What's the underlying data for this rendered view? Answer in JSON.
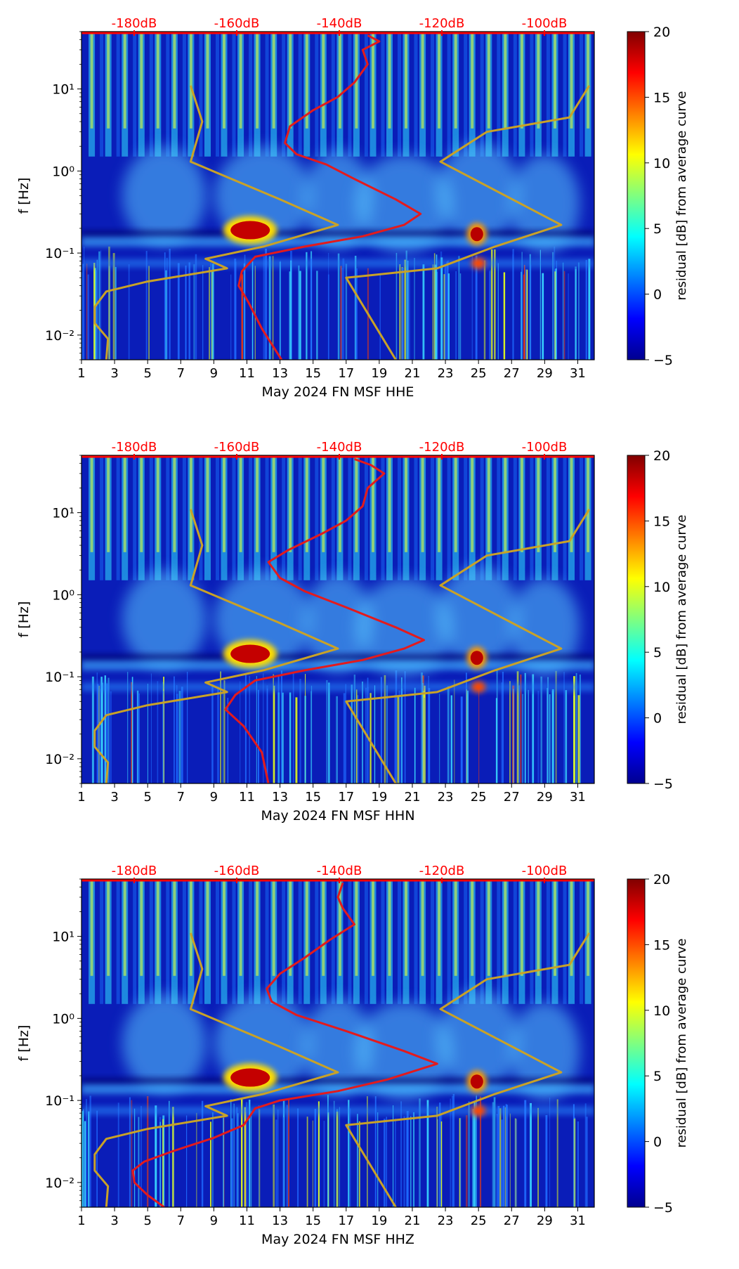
{
  "chart_data": [
    {
      "type": "heatmap",
      "component": "HHE",
      "xlabel": "May 2024 FN MSF  HHE",
      "ylabel": "f [Hz]",
      "colorbar_label": "residual [dB] from average curve",
      "xlim": [
        1,
        32
      ],
      "xticks": [
        1,
        3,
        5,
        7,
        9,
        11,
        13,
        15,
        17,
        19,
        21,
        23,
        25,
        27,
        29,
        31
      ],
      "ylim_hz": [
        0.005,
        50
      ],
      "yticks": [
        "10⁻²",
        "10⁻¹",
        "10⁰",
        "10¹"
      ],
      "colorbar_range": [
        -5,
        20
      ],
      "colorbar_ticks": [
        "−5",
        "0",
        "5",
        "10",
        "15",
        "20"
      ],
      "top_axis_ticks": [
        "-180dB",
        "-160dB",
        "-140dB",
        "-120dB",
        "-100dB"
      ],
      "top_axis_label_color": "#ff0000",
      "series": [
        {
          "name": "red curve (average PSD, top dB axis)",
          "color": "#e41a1c",
          "points": [
            [
              13.1,
              0.005
            ],
            [
              11.9,
              0.012
            ],
            [
              11.1,
              0.025
            ],
            [
              10.5,
              0.04
            ],
            [
              10.7,
              0.06
            ],
            [
              11.5,
              0.09
            ],
            [
              14.5,
              0.12
            ],
            [
              18.0,
              0.16
            ],
            [
              20.5,
              0.22
            ],
            [
              21.5,
              0.3
            ],
            [
              20.0,
              0.45
            ],
            [
              17.5,
              0.8
            ],
            [
              15.8,
              1.2
            ],
            [
              14.0,
              1.6
            ],
            [
              13.3,
              2.2
            ],
            [
              13.6,
              3.5
            ],
            [
              15.0,
              5.5
            ],
            [
              16.5,
              8.0
            ],
            [
              17.5,
              12.0
            ],
            [
              18.3,
              20.0
            ],
            [
              18.0,
              30.0
            ],
            [
              19.0,
              38.0
            ],
            [
              18.3,
              45.0
            ]
          ]
        },
        {
          "name": "gold curve (reference model)",
          "color": "#c9a227",
          "points": [
            [
              2.5,
              0.005
            ],
            [
              2.6,
              0.009
            ],
            [
              1.8,
              0.014
            ],
            [
              1.8,
              0.022
            ],
            [
              2.5,
              0.034
            ],
            [
              5.0,
              0.045
            ],
            [
              9.8,
              0.065
            ],
            [
              8.5,
              0.085
            ],
            [
              12.0,
              0.12
            ],
            [
              16.5,
              0.22
            ],
            [
              13.0,
              0.45
            ],
            [
              7.6,
              1.3
            ],
            [
              8.3,
              4.0
            ],
            [
              7.6,
              11.0
            ],
            [
              null,
              null
            ],
            [
              20.0,
              0.005
            ],
            [
              17.0,
              0.05
            ],
            [
              22.5,
              0.065
            ],
            [
              26.0,
              0.12
            ],
            [
              30.0,
              0.22
            ],
            [
              22.7,
              1.3
            ],
            [
              25.5,
              3.0
            ],
            [
              30.5,
              4.5
            ],
            [
              31.7,
              11.0
            ]
          ]
        }
      ]
    },
    {
      "type": "heatmap",
      "component": "HHN",
      "xlabel": "May 2024 FN MSF  HHN",
      "ylabel": "f [Hz]",
      "colorbar_label": "residual [dB] from average curve",
      "xlim": [
        1,
        32
      ],
      "xticks": [
        1,
        3,
        5,
        7,
        9,
        11,
        13,
        15,
        17,
        19,
        21,
        23,
        25,
        27,
        29,
        31
      ],
      "ylim_hz": [
        0.005,
        50
      ],
      "yticks": [
        "10⁻²",
        "10⁻¹",
        "10⁰",
        "10¹"
      ],
      "colorbar_range": [
        -5,
        20
      ],
      "colorbar_ticks": [
        "−5",
        "0",
        "5",
        "10",
        "15",
        "20"
      ],
      "top_axis_ticks": [
        "-180dB",
        "-160dB",
        "-140dB",
        "-120dB",
        "-100dB"
      ],
      "top_axis_label_color": "#ff0000",
      "series": [
        {
          "name": "red curve (average PSD, top dB axis)",
          "color": "#e41a1c",
          "points": [
            [
              12.3,
              0.005
            ],
            [
              11.9,
              0.012
            ],
            [
              10.8,
              0.025
            ],
            [
              9.7,
              0.04
            ],
            [
              10.3,
              0.06
            ],
            [
              11.5,
              0.09
            ],
            [
              14.5,
              0.12
            ],
            [
              18.0,
              0.16
            ],
            [
              20.5,
              0.22
            ],
            [
              21.7,
              0.28
            ],
            [
              20.0,
              0.4
            ],
            [
              17.0,
              0.7
            ],
            [
              14.5,
              1.1
            ],
            [
              13.0,
              1.6
            ],
            [
              12.3,
              2.5
            ],
            [
              13.5,
              3.5
            ],
            [
              15.5,
              5.5
            ],
            [
              17.0,
              8.0
            ],
            [
              18.0,
              12.0
            ],
            [
              18.3,
              20.0
            ],
            [
              19.3,
              30.0
            ],
            [
              18.5,
              38.0
            ],
            [
              17.5,
              45.0
            ]
          ]
        },
        {
          "name": "gold curve (reference model)",
          "color": "#c9a227",
          "points": [
            [
              2.5,
              0.005
            ],
            [
              2.6,
              0.009
            ],
            [
              1.8,
              0.014
            ],
            [
              1.8,
              0.022
            ],
            [
              2.5,
              0.034
            ],
            [
              5.0,
              0.045
            ],
            [
              9.8,
              0.065
            ],
            [
              8.5,
              0.085
            ],
            [
              12.0,
              0.12
            ],
            [
              16.5,
              0.22
            ],
            [
              13.0,
              0.45
            ],
            [
              7.6,
              1.3
            ],
            [
              8.3,
              4.0
            ],
            [
              7.6,
              11.0
            ],
            [
              null,
              null
            ],
            [
              20.0,
              0.005
            ],
            [
              17.0,
              0.05
            ],
            [
              22.5,
              0.065
            ],
            [
              26.0,
              0.12
            ],
            [
              30.0,
              0.22
            ],
            [
              22.7,
              1.3
            ],
            [
              25.5,
              3.0
            ],
            [
              30.5,
              4.5
            ],
            [
              31.7,
              11.0
            ]
          ]
        }
      ]
    },
    {
      "type": "heatmap",
      "component": "HHZ",
      "xlabel": "May 2024 FN MSF  HHZ",
      "ylabel": "f [Hz]",
      "colorbar_label": "residual [dB] from average curve",
      "xlim": [
        1,
        32
      ],
      "xticks": [
        1,
        3,
        5,
        7,
        9,
        11,
        13,
        15,
        17,
        19,
        21,
        23,
        25,
        27,
        29,
        31
      ],
      "ylim_hz": [
        0.005,
        50
      ],
      "yticks": [
        "10⁻²",
        "10⁻¹",
        "10⁰",
        "10¹"
      ],
      "colorbar_range": [
        -5,
        20
      ],
      "colorbar_ticks": [
        "−5",
        "0",
        "5",
        "10",
        "15",
        "20"
      ],
      "top_axis_ticks": [
        "-180dB",
        "-160dB",
        "-140dB",
        "-120dB",
        "-100dB"
      ],
      "top_axis_label_color": "#ff0000",
      "series": [
        {
          "name": "red curve (average PSD, top dB axis)",
          "color": "#e41a1c",
          "points": [
            [
              6.0,
              0.005
            ],
            [
              5.0,
              0.007
            ],
            [
              4.2,
              0.01
            ],
            [
              4.1,
              0.014
            ],
            [
              4.8,
              0.018
            ],
            [
              6.5,
              0.024
            ],
            [
              9.0,
              0.035
            ],
            [
              10.8,
              0.05
            ],
            [
              11.5,
              0.08
            ],
            [
              13.0,
              0.1
            ],
            [
              16.5,
              0.13
            ],
            [
              19.5,
              0.18
            ],
            [
              22.5,
              0.28
            ],
            [
              20.5,
              0.4
            ],
            [
              17.0,
              0.7
            ],
            [
              14.0,
              1.1
            ],
            [
              12.5,
              1.6
            ],
            [
              12.2,
              2.3
            ],
            [
              13.0,
              3.5
            ],
            [
              14.5,
              5.5
            ],
            [
              16.0,
              9.0
            ],
            [
              17.5,
              14.0
            ],
            [
              16.8,
              22.0
            ],
            [
              16.5,
              30.0
            ],
            [
              16.8,
              45.0
            ]
          ]
        },
        {
          "name": "gold curve (reference model)",
          "color": "#c9a227",
          "points": [
            [
              2.5,
              0.005
            ],
            [
              2.6,
              0.009
            ],
            [
              1.8,
              0.014
            ],
            [
              1.8,
              0.022
            ],
            [
              2.5,
              0.034
            ],
            [
              5.0,
              0.045
            ],
            [
              9.8,
              0.065
            ],
            [
              8.5,
              0.085
            ],
            [
              12.0,
              0.12
            ],
            [
              16.5,
              0.22
            ],
            [
              13.0,
              0.45
            ],
            [
              7.6,
              1.3
            ],
            [
              8.3,
              4.0
            ],
            [
              7.6,
              11.0
            ],
            [
              null,
              null
            ],
            [
              20.0,
              0.005
            ],
            [
              17.0,
              0.05
            ],
            [
              22.5,
              0.065
            ],
            [
              26.0,
              0.12
            ],
            [
              30.0,
              0.22
            ],
            [
              22.7,
              1.3
            ],
            [
              25.5,
              3.0
            ],
            [
              30.5,
              4.5
            ],
            [
              31.7,
              11.0
            ]
          ]
        }
      ]
    }
  ],
  "colors": {
    "background": "#ffffff",
    "axis": "#000000",
    "top_axis": "#ff0000",
    "red_curve": "#e41a1c",
    "gold_curve": "#c9a227"
  }
}
